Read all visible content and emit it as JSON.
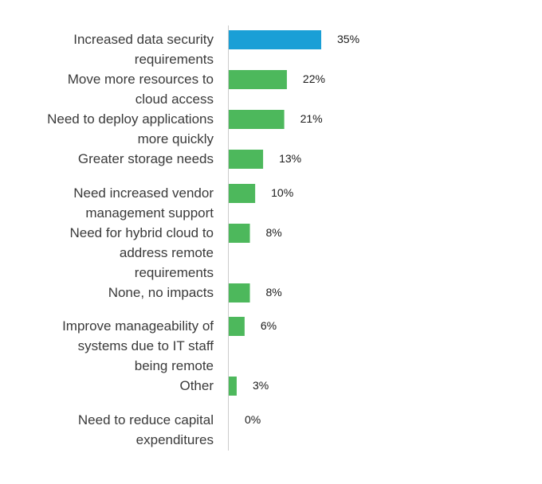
{
  "chart_data": {
    "type": "bar",
    "orientation": "horizontal",
    "categories": [
      [
        "Increased data security",
        "requirements"
      ],
      [
        "Move more resources to",
        "cloud access"
      ],
      [
        "Need to deploy applications",
        "more quickly"
      ],
      [
        "Greater storage needs"
      ],
      [
        "Need increased vendor",
        "management support"
      ],
      [
        "Need for hybrid cloud to",
        "address remote",
        "requirements"
      ],
      [
        "None, no impacts"
      ],
      [
        "Improve manageability of",
        "systems due to IT staff",
        "being remote"
      ],
      [
        "Other"
      ],
      [
        "Need to reduce capital",
        "expenditures"
      ]
    ],
    "values": [
      35,
      22,
      21,
      13,
      10,
      8,
      8,
      6,
      3,
      0
    ],
    "value_labels": [
      "35%",
      "22%",
      "21%",
      "13%",
      "10%",
      "8%",
      "8%",
      "6%",
      "3%",
      "0%"
    ],
    "colors": {
      "highlight": "#1a9fd6",
      "default": "#4db85c",
      "axis": "#cccccc"
    },
    "highlight_index": 0,
    "grid": false,
    "legend": "none"
  }
}
